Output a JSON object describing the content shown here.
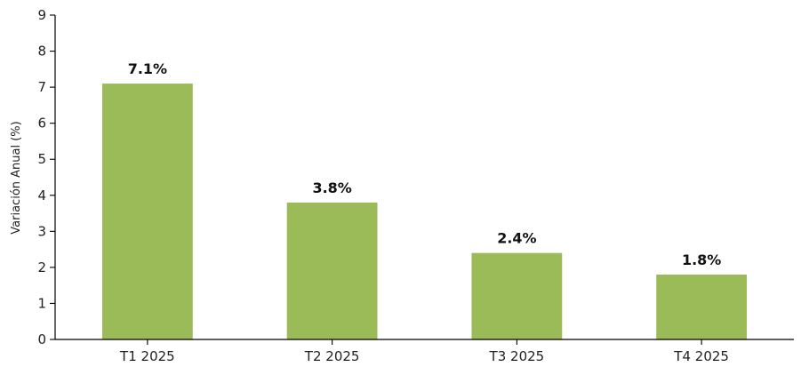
{
  "chart_data": {
    "type": "bar",
    "title": "",
    "xlabel": "",
    "ylabel": "Variación Anual (%)",
    "categories": [
      "T1 2025",
      "T2 2025",
      "T3 2025",
      "T4 2025"
    ],
    "values": [
      7.1,
      3.8,
      2.4,
      1.8
    ],
    "value_labels": [
      "7.1%",
      "3.8%",
      "2.4%",
      "1.8%"
    ],
    "ylim": [
      0,
      9
    ],
    "yticks": [
      0,
      1,
      2,
      3,
      4,
      5,
      6,
      7,
      8,
      9
    ],
    "grid": false,
    "legend": "none",
    "bar_color": "#9bbb59"
  }
}
